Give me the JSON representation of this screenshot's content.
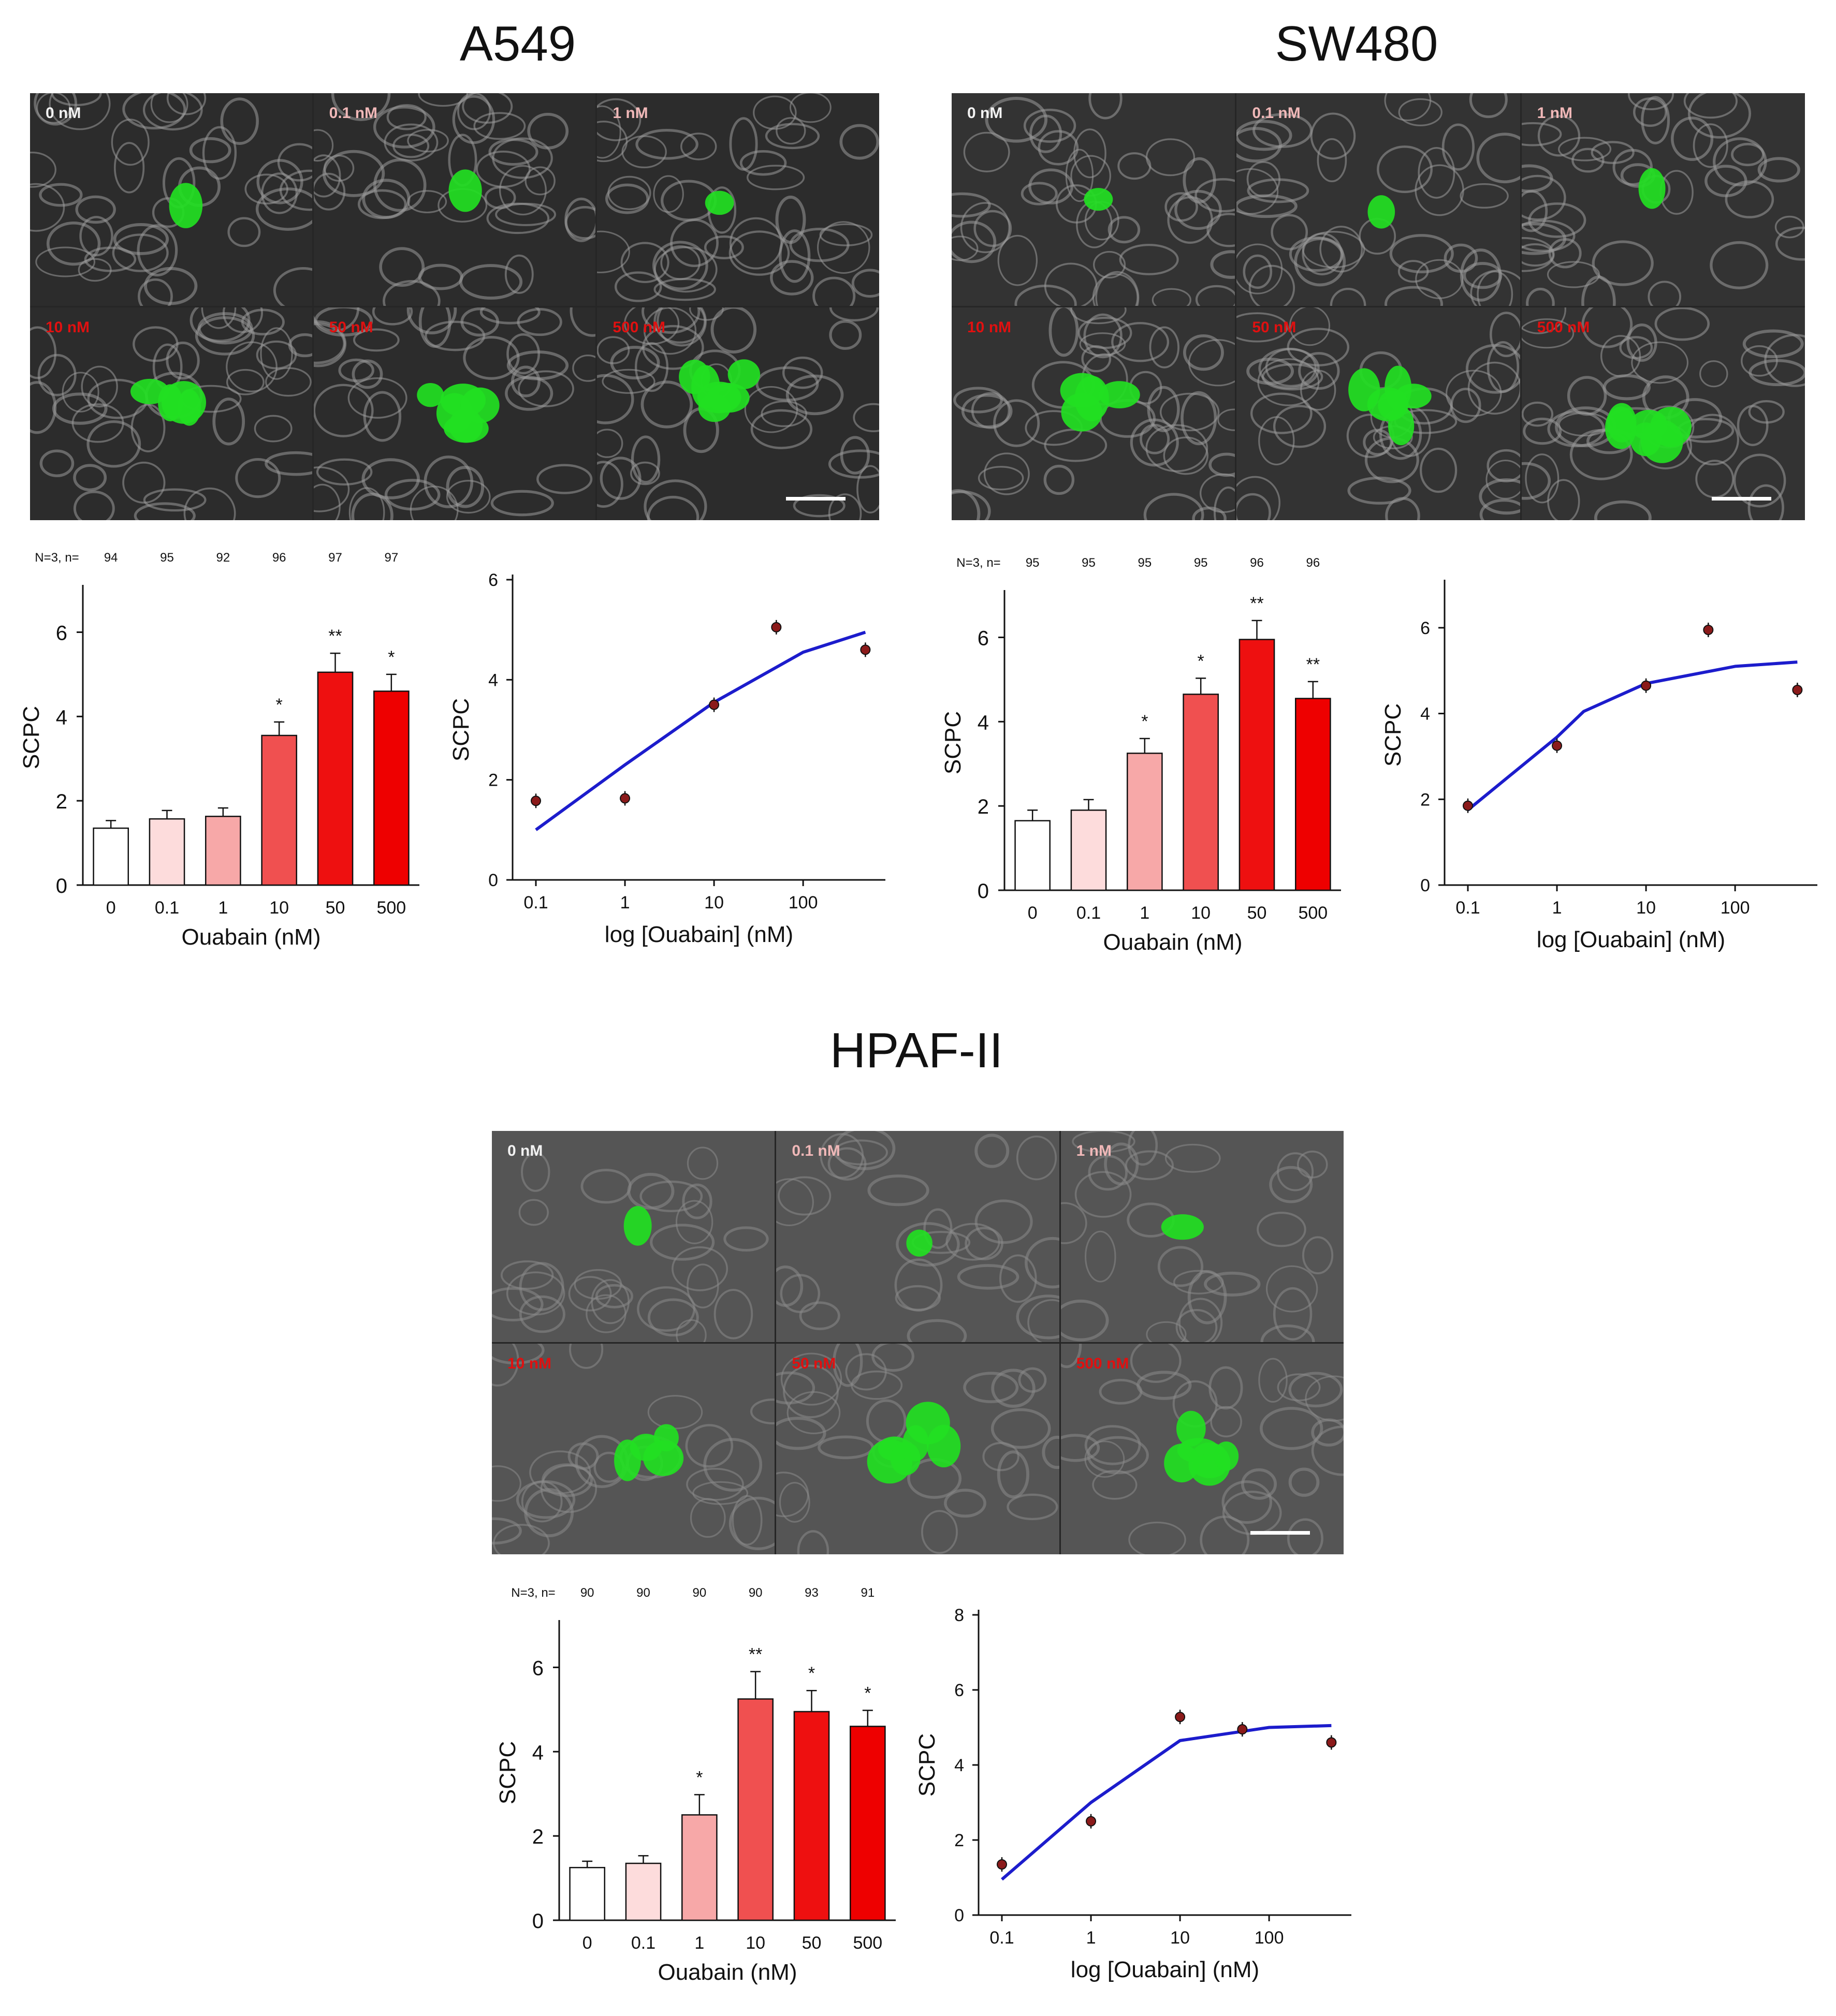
{
  "figure": {
    "groups": [
      {
        "id": "a549",
        "title": "A549",
        "panel_labels": [
          "0 nM",
          "0.1 nM",
          "1 nM",
          "10 nM",
          "50 nM",
          "500 nM"
        ]
      },
      {
        "id": "sw480",
        "title": "SW480",
        "panel_labels": [
          "0 nM",
          "0.1 nM",
          "1 nM",
          "10 nM",
          "50 nM",
          "500 nM"
        ]
      },
      {
        "id": "hpaf",
        "title": "HPAF-II",
        "panel_labels": [
          "0 nM",
          "0.1 nM",
          "1 nM",
          "10 nM",
          "50 nM",
          "500 nM"
        ]
      }
    ],
    "label_colors": {
      "low": "#f2f2f2",
      "mid": "#f0b8b8",
      "high": "#e01010"
    },
    "fluorescence_color": "#22e022"
  },
  "chart_data": [
    {
      "id": "a549-bar",
      "group": "A549",
      "type": "bar",
      "categories": [
        "0",
        "0.1",
        "1",
        "10",
        "50",
        "500"
      ],
      "values": [
        1.35,
        1.57,
        1.63,
        3.55,
        5.05,
        4.6
      ],
      "errors": [
        0.18,
        0.2,
        0.2,
        0.32,
        0.45,
        0.4
      ],
      "significance": [
        "",
        "",
        "",
        "*",
        "**",
        "*"
      ],
      "n_label": "N=3, n=",
      "n_values": [
        "94",
        "95",
        "92",
        "96",
        "97",
        "97"
      ],
      "bar_colors": [
        "#ffffff",
        "#fddcdc",
        "#f7a8a8",
        "#f05050",
        "#ee1010",
        "#ee0000"
      ],
      "xlabel": "Ouabain (nM)",
      "ylabel": "SCPC",
      "ylim": [
        0,
        7
      ],
      "yticks": [
        0,
        2,
        4,
        6
      ]
    },
    {
      "id": "a549-curve",
      "group": "A549",
      "type": "scatter",
      "x": [
        0.1,
        1,
        10,
        50,
        500
      ],
      "y": [
        1.58,
        1.63,
        3.5,
        5.05,
        4.6
      ],
      "fit": {
        "x": [
          0.1,
          1,
          10,
          100,
          500
        ],
        "y": [
          1.0,
          2.3,
          3.55,
          4.55,
          4.95
        ]
      },
      "xticks": [
        "0.1",
        "1",
        "10",
        "100"
      ],
      "xlabel": "log [Ouabain] (nM)",
      "ylabel": "SCPC",
      "ylim": [
        0,
        6
      ],
      "yticks": [
        0,
        2,
        4,
        6
      ],
      "xscale": "log",
      "fit_color": "#1c1ccc",
      "point_color": "#8b1a1a"
    },
    {
      "id": "sw480-bar",
      "group": "SW480",
      "type": "bar",
      "categories": [
        "0",
        "0.1",
        "1",
        "10",
        "50",
        "500"
      ],
      "values": [
        1.65,
        1.9,
        3.25,
        4.65,
        5.95,
        4.55
      ],
      "errors": [
        0.25,
        0.25,
        0.35,
        0.38,
        0.45,
        0.4
      ],
      "significance": [
        "",
        "",
        "*",
        "*",
        "**",
        "**"
      ],
      "n_label": "N=3, n=",
      "n_values": [
        "95",
        "95",
        "95",
        "95",
        "96",
        "96"
      ],
      "bar_colors": [
        "#ffffff",
        "#fddcdc",
        "#f7a8a8",
        "#f05050",
        "#ee1010",
        "#ee0000"
      ],
      "xlabel": "Ouabain (nM)",
      "ylabel": "SCPC",
      "ylim": [
        0,
        7
      ],
      "yticks": [
        0,
        2,
        4,
        6
      ]
    },
    {
      "id": "sw480-curve",
      "group": "SW480",
      "type": "scatter",
      "x": [
        0.1,
        1,
        10,
        50,
        500
      ],
      "y": [
        1.85,
        3.25,
        4.65,
        5.95,
        4.55
      ],
      "fit": {
        "x": [
          0.1,
          1,
          2,
          10,
          100,
          500
        ],
        "y": [
          1.75,
          3.45,
          4.05,
          4.7,
          5.1,
          5.2
        ]
      },
      "xticks": [
        "0.1",
        "1",
        "10",
        "100"
      ],
      "xlabel": "log [Ouabain] (nM)",
      "ylabel": "SCPC",
      "ylim": [
        0,
        7
      ],
      "yticks": [
        0,
        2,
        4,
        6
      ],
      "xscale": "log",
      "fit_color": "#1c1ccc",
      "point_color": "#8b1a1a"
    },
    {
      "id": "hpaf-bar",
      "group": "HPAF-II",
      "type": "bar",
      "categories": [
        "0",
        "0.1",
        "1",
        "10",
        "50",
        "500"
      ],
      "values": [
        1.25,
        1.35,
        2.5,
        5.25,
        4.95,
        4.6
      ],
      "errors": [
        0.15,
        0.18,
        0.48,
        0.65,
        0.5,
        0.38
      ],
      "significance": [
        "",
        "",
        "*",
        "**",
        "*",
        "*"
      ],
      "n_label": "N=3, n=",
      "n_values": [
        "90",
        "90",
        "90",
        "90",
        "93",
        "91"
      ],
      "bar_colors": [
        "#ffffff",
        "#fddcdc",
        "#f7a8a8",
        "#f05050",
        "#ee1010",
        "#ee0000"
      ],
      "xlabel": "Ouabain (nM)",
      "ylabel": "SCPC",
      "ylim": [
        0,
        7
      ],
      "yticks": [
        0,
        2,
        4,
        6
      ]
    },
    {
      "id": "hpaf-curve",
      "group": "HPAF-II",
      "type": "scatter",
      "x": [
        0.1,
        1,
        10,
        50,
        500
      ],
      "y": [
        1.35,
        2.5,
        5.28,
        4.95,
        4.6
      ],
      "fit": {
        "x": [
          0.1,
          1,
          10,
          100,
          500
        ],
        "y": [
          0.95,
          3.0,
          4.65,
          5.0,
          5.05
        ]
      },
      "xticks": [
        "0.1",
        "1",
        "10",
        "100"
      ],
      "xlabel": "log [Ouabain] (nM)",
      "ylabel": "SCPC",
      "ylim": [
        0,
        8
      ],
      "yticks": [
        0,
        2,
        4,
        6,
        8
      ],
      "xscale": "log",
      "fit_color": "#1c1ccc",
      "point_color": "#8b1a1a"
    }
  ]
}
